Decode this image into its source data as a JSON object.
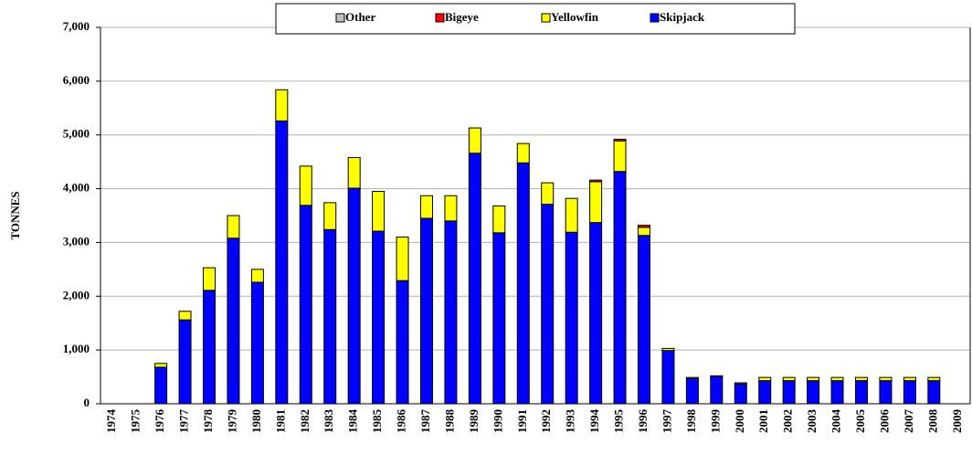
{
  "chart_data": {
    "type": "stacked_bar",
    "y_label": "TONNES",
    "categories": [
      "1974",
      "1975",
      "1976",
      "1977",
      "1978",
      "1979",
      "1980",
      "1981",
      "1982",
      "1983",
      "1984",
      "1985",
      "1986",
      "1987",
      "1988",
      "1989",
      "1990",
      "1991",
      "1992",
      "1993",
      "1994",
      "1995",
      "1996",
      "1997",
      "1998",
      "1999",
      "2000",
      "2001",
      "2002",
      "2003",
      "2004",
      "2005",
      "2006",
      "2007",
      "2008",
      "2009"
    ],
    "series": [
      {
        "name": "Skipjack",
        "color": "#0000ff",
        "values": [
          0,
          0,
          680,
          1560,
          2110,
          3080,
          2260,
          5260,
          3690,
          3240,
          4010,
          3210,
          2290,
          3450,
          3400,
          4660,
          3180,
          4480,
          3710,
          3190,
          3370,
          4320,
          3130,
          990,
          470,
          510,
          370,
          430,
          430,
          430,
          430,
          430,
          430,
          430,
          430,
          0
        ]
      },
      {
        "name": "Yellowfin",
        "color": "#ffff00",
        "values": [
          0,
          0,
          70,
          160,
          420,
          420,
          240,
          580,
          730,
          500,
          570,
          740,
          810,
          420,
          470,
          470,
          500,
          360,
          400,
          630,
          760,
          570,
          150,
          40,
          20,
          10,
          20,
          60,
          60,
          60,
          60,
          60,
          60,
          60,
          60,
          0
        ]
      },
      {
        "name": "Bigeye",
        "color": "#ff0000",
        "values": [
          0,
          0,
          0,
          0,
          0,
          0,
          0,
          0,
          0,
          0,
          0,
          0,
          0,
          0,
          0,
          0,
          0,
          0,
          0,
          0,
          30,
          30,
          40,
          0,
          0,
          0,
          0,
          0,
          0,
          0,
          0,
          0,
          0,
          0,
          0,
          0
        ]
      },
      {
        "name": "Other",
        "color": "#c0c0c0",
        "values": [
          0,
          0,
          0,
          0,
          0,
          0,
          0,
          0,
          0,
          0,
          0,
          0,
          0,
          0,
          0,
          0,
          0,
          0,
          0,
          0,
          0,
          0,
          0,
          0,
          0,
          0,
          0,
          0,
          0,
          0,
          0,
          0,
          0,
          0,
          0,
          0
        ]
      }
    ],
    "ylim": [
      0,
      7000
    ],
    "yticks": [
      0,
      {
        "value": 1000,
        "label": "1,000"
      },
      {
        "value": 2000,
        "label": "2,000"
      },
      {
        "value": 3000,
        "label": "3,000"
      },
      {
        "value": 4000,
        "label": "4,000"
      },
      {
        "value": 5000,
        "label": "5,000"
      },
      {
        "value": 6000,
        "label": "6,000"
      },
      {
        "value": 7000,
        "label": "7,000"
      }
    ],
    "grid": true,
    "legend": "top"
  }
}
